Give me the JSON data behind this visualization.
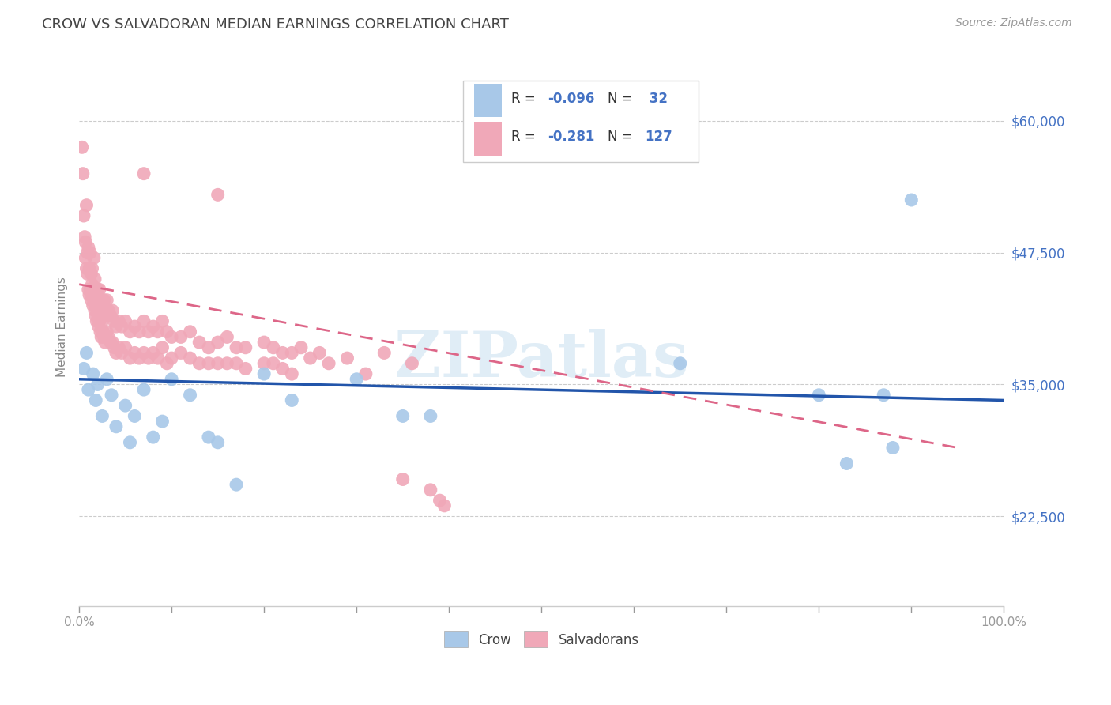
{
  "title": "CROW VS SALVADORAN MEDIAN EARNINGS CORRELATION CHART",
  "source": "Source: ZipAtlas.com",
  "ylabel": "Median Earnings",
  "yticks": [
    22500,
    35000,
    47500,
    60000
  ],
  "ytick_labels": [
    "$22,500",
    "$35,000",
    "$47,500",
    "$60,000"
  ],
  "xlim": [
    0.0,
    1.0
  ],
  "ylim": [
    14000,
    67000
  ],
  "watermark": "ZIPatlas",
  "crow_color": "#a8c8e8",
  "salv_color": "#f0a8b8",
  "crow_line_color": "#2255aa",
  "salv_line_color": "#dd6688",
  "background_color": "#ffffff",
  "grid_color": "#cccccc",
  "crow_points": [
    [
      0.005,
      36500
    ],
    [
      0.008,
      38000
    ],
    [
      0.01,
      34500
    ],
    [
      0.015,
      36000
    ],
    [
      0.018,
      33500
    ],
    [
      0.02,
      35000
    ],
    [
      0.025,
      32000
    ],
    [
      0.03,
      35500
    ],
    [
      0.035,
      34000
    ],
    [
      0.04,
      31000
    ],
    [
      0.05,
      33000
    ],
    [
      0.055,
      29500
    ],
    [
      0.06,
      32000
    ],
    [
      0.07,
      34500
    ],
    [
      0.08,
      30000
    ],
    [
      0.09,
      31500
    ],
    [
      0.1,
      35500
    ],
    [
      0.12,
      34000
    ],
    [
      0.14,
      30000
    ],
    [
      0.15,
      29500
    ],
    [
      0.17,
      25500
    ],
    [
      0.2,
      36000
    ],
    [
      0.23,
      33500
    ],
    [
      0.3,
      35500
    ],
    [
      0.35,
      32000
    ],
    [
      0.38,
      32000
    ],
    [
      0.65,
      37000
    ],
    [
      0.8,
      34000
    ],
    [
      0.83,
      27500
    ],
    [
      0.87,
      34000
    ],
    [
      0.88,
      29000
    ],
    [
      0.9,
      52500
    ]
  ],
  "salv_points": [
    [
      0.003,
      57500
    ],
    [
      0.004,
      55000
    ],
    [
      0.005,
      51000
    ],
    [
      0.006,
      49000
    ],
    [
      0.007,
      48500
    ],
    [
      0.007,
      47000
    ],
    [
      0.008,
      52000
    ],
    [
      0.008,
      46000
    ],
    [
      0.009,
      47500
    ],
    [
      0.009,
      45500
    ],
    [
      0.01,
      48000
    ],
    [
      0.01,
      44000
    ],
    [
      0.011,
      46000
    ],
    [
      0.011,
      43500
    ],
    [
      0.012,
      47500
    ],
    [
      0.012,
      44000
    ],
    [
      0.013,
      45500
    ],
    [
      0.013,
      43000
    ],
    [
      0.014,
      46000
    ],
    [
      0.014,
      44500
    ],
    [
      0.015,
      44000
    ],
    [
      0.015,
      42500
    ],
    [
      0.016,
      47000
    ],
    [
      0.016,
      43000
    ],
    [
      0.017,
      45000
    ],
    [
      0.017,
      42000
    ],
    [
      0.018,
      44000
    ],
    [
      0.018,
      41500
    ],
    [
      0.019,
      43000
    ],
    [
      0.019,
      41000
    ],
    [
      0.02,
      44000
    ],
    [
      0.02,
      42000
    ],
    [
      0.021,
      43000
    ],
    [
      0.021,
      40500
    ],
    [
      0.022,
      44000
    ],
    [
      0.022,
      41000
    ],
    [
      0.023,
      43000
    ],
    [
      0.023,
      40000
    ],
    [
      0.024,
      42500
    ],
    [
      0.024,
      39500
    ],
    [
      0.025,
      43000
    ],
    [
      0.025,
      41000
    ],
    [
      0.026,
      42500
    ],
    [
      0.026,
      40000
    ],
    [
      0.027,
      43000
    ],
    [
      0.027,
      39500
    ],
    [
      0.028,
      41500
    ],
    [
      0.028,
      39000
    ],
    [
      0.03,
      43000
    ],
    [
      0.03,
      40000
    ],
    [
      0.032,
      42000
    ],
    [
      0.032,
      39500
    ],
    [
      0.034,
      41500
    ],
    [
      0.034,
      39000
    ],
    [
      0.036,
      42000
    ],
    [
      0.036,
      39000
    ],
    [
      0.038,
      41000
    ],
    [
      0.038,
      38500
    ],
    [
      0.04,
      40500
    ],
    [
      0.04,
      38000
    ],
    [
      0.043,
      41000
    ],
    [
      0.043,
      38500
    ],
    [
      0.046,
      40500
    ],
    [
      0.046,
      38000
    ],
    [
      0.05,
      41000
    ],
    [
      0.05,
      38500
    ],
    [
      0.055,
      40000
    ],
    [
      0.055,
      37500
    ],
    [
      0.06,
      40500
    ],
    [
      0.06,
      38000
    ],
    [
      0.065,
      40000
    ],
    [
      0.065,
      37500
    ],
    [
      0.07,
      41000
    ],
    [
      0.07,
      38000
    ],
    [
      0.075,
      40000
    ],
    [
      0.075,
      37500
    ],
    [
      0.08,
      40500
    ],
    [
      0.08,
      38000
    ],
    [
      0.085,
      40000
    ],
    [
      0.085,
      37500
    ],
    [
      0.09,
      41000
    ],
    [
      0.09,
      38500
    ],
    [
      0.095,
      40000
    ],
    [
      0.095,
      37000
    ],
    [
      0.1,
      39500
    ],
    [
      0.1,
      37500
    ],
    [
      0.11,
      39500
    ],
    [
      0.11,
      38000
    ],
    [
      0.12,
      40000
    ],
    [
      0.12,
      37500
    ],
    [
      0.13,
      39000
    ],
    [
      0.13,
      37000
    ],
    [
      0.14,
      38500
    ],
    [
      0.14,
      37000
    ],
    [
      0.15,
      39000
    ],
    [
      0.15,
      37000
    ],
    [
      0.16,
      39500
    ],
    [
      0.16,
      37000
    ],
    [
      0.17,
      38500
    ],
    [
      0.17,
      37000
    ],
    [
      0.18,
      38500
    ],
    [
      0.18,
      36500
    ],
    [
      0.2,
      39000
    ],
    [
      0.2,
      37000
    ],
    [
      0.21,
      38500
    ],
    [
      0.21,
      37000
    ],
    [
      0.22,
      38000
    ],
    [
      0.22,
      36500
    ],
    [
      0.23,
      38000
    ],
    [
      0.23,
      36000
    ],
    [
      0.24,
      38500
    ],
    [
      0.25,
      37500
    ],
    [
      0.26,
      38000
    ],
    [
      0.27,
      37000
    ],
    [
      0.29,
      37500
    ],
    [
      0.31,
      36000
    ],
    [
      0.33,
      38000
    ],
    [
      0.35,
      26000
    ],
    [
      0.36,
      37000
    ],
    [
      0.38,
      25000
    ],
    [
      0.39,
      24000
    ],
    [
      0.395,
      23500
    ],
    [
      0.07,
      55000
    ],
    [
      0.15,
      53000
    ]
  ]
}
